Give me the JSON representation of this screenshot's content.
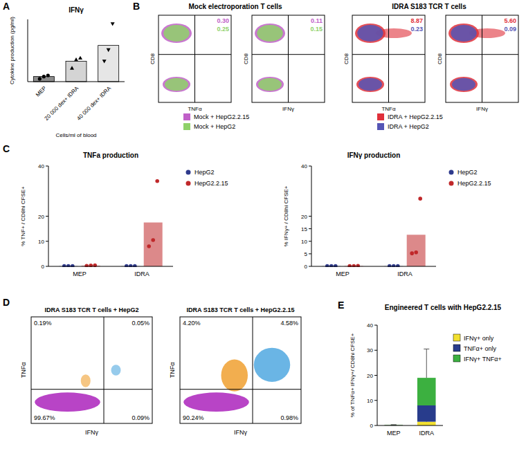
{
  "chart_data": [
    {
      "panel": "A",
      "type": "bar",
      "title": "IFNγ",
      "y_label": "Cytokine production (pg/ml)",
      "x_label": "Cells/ml of blood",
      "categories": [
        "MEP",
        "20 000 dex+ IDRA",
        "40 000 dex+ IDRA"
      ],
      "values": [
        4.5,
        18,
        32
      ],
      "colors": [
        "#8c8c8c",
        "#d4d4d4",
        "#e6e6e6"
      ],
      "points": [
        [
          2.5,
          4.5,
          5.5
        ],
        [
          12,
          19.5,
          21
        ],
        [
          18,
          28,
          51
        ]
      ],
      "ylim": [
        0,
        55
      ],
      "tick_labels": "x"
    },
    {
      "panel": "B",
      "type": "flow",
      "title": "Mock electroporation T cells",
      "y_label": "CD8",
      "series": [
        {
          "name": "Mock + HepG2.2.15",
          "color": "#c060c8"
        },
        {
          "name": "Mock + HepG2",
          "color": "#8fd16a"
        }
      ],
      "plots": [
        {
          "x_label": "TNFα",
          "values": [
            0.3,
            0.25
          ],
          "value_labels": [
            "0.30",
            "0.25"
          ]
        },
        {
          "x_label": "IFNγ",
          "values": [
            0.11,
            0.15
          ],
          "value_labels": [
            "0.11",
            "0.15"
          ]
        }
      ]
    },
    {
      "type": "flow",
      "title": "IDRA S183 TCR T cells",
      "y_label": "CD8",
      "series": [
        {
          "name": "IDRA + HepG2.2.15",
          "color": "#e0303a"
        },
        {
          "name": "IDRA + HepG2",
          "color": "#5555b5"
        }
      ],
      "plots": [
        {
          "x_label": "TNFα",
          "values": [
            8.87,
            0.23
          ],
          "value_labels": [
            "8.87",
            "0.23"
          ]
        },
        {
          "x_label": "IFNγ",
          "values": [
            5.6,
            0.09
          ],
          "value_labels": [
            "5.60",
            "0.09"
          ]
        }
      ]
    },
    {
      "panel": "C",
      "type": "bar",
      "title": "TNFa production",
      "y_label": "% TNF+ / CD8hi CFSE+",
      "categories": [
        "MEP",
        "IDRA"
      ],
      "series": [
        {
          "name": "HepG2",
          "color": "#2e3a8c",
          "values": [
            0.1,
            0.1
          ],
          "points": [
            [
              0.1,
              0.1,
              0.1
            ],
            [
              0.1,
              0.1,
              0.1
            ]
          ]
        },
        {
          "name": "HepG2.2.15",
          "color": "#c0282a",
          "values": [
            0.3,
            17.5
          ],
          "points": [
            [
              0.2,
              0.3,
              0.4
            ],
            [
              8,
              10.5,
              34
            ]
          ]
        }
      ],
      "ylim": [
        0,
        40
      ],
      "yticks": [
        0,
        10,
        20,
        40
      ],
      "legend": "right"
    },
    {
      "type": "bar",
      "title": "IFNγ production",
      "y_label": "% IFNγ+ / CD8hi CFSE+",
      "categories": [
        "MEP",
        "IDRA"
      ],
      "series": [
        {
          "name": "HepG2",
          "color": "#2e3a8c",
          "values": [
            0.1,
            0.1
          ],
          "points": [
            [
              0.1,
              0.1,
              0.1
            ],
            [
              0.1,
              0.1,
              0.1
            ]
          ]
        },
        {
          "name": "HepG2.2.15",
          "color": "#c0282a",
          "values": [
            0.15,
            12.6
          ],
          "points": [
            [
              0.1,
              0.15,
              0.2
            ],
            [
              5.2,
              5.6,
              27
            ]
          ]
        }
      ],
      "ylim": [
        0,
        40
      ],
      "yticks": [
        0,
        5,
        10,
        15,
        20,
        40
      ],
      "legend": "right"
    },
    {
      "panel": "D",
      "type": "flow",
      "x_label": "IFNγ",
      "y_label": "TNFα",
      "plots": [
        {
          "title": "IDRA S183 TCR T cells + HepG2",
          "values": [
            0.19,
            0.05,
            99.67,
            0.09
          ],
          "value_labels": [
            "0.19%",
            "0.05%",
            "99.67%",
            "0.09%"
          ]
        },
        {
          "title": "IDRA S183 TCR T cells + HepG2.2.15",
          "values": [
            4.2,
            4.58,
            90.24,
            0.98
          ],
          "value_labels": [
            "4.20%",
            "4.58%",
            "90.24%",
            "0.98%"
          ]
        }
      ]
    },
    {
      "panel": "E",
      "type": "bar",
      "title": "Engineered T cells with HepG2.2.15",
      "y_label": "% of TNFα+ IFNγ+/ CD8hi CFSE+",
      "categories": [
        "MEP",
        "IDRA"
      ],
      "series": [
        {
          "name": "IFNγ+ only",
          "color": "#f2e030",
          "values": [
            0.1,
            1.5
          ],
          "errors": [
            0,
            0.5
          ]
        },
        {
          "name": "TNFα+ only",
          "color": "#283c8c",
          "values": [
            0.1,
            6.5
          ],
          "errors": [
            0,
            2
          ]
        },
        {
          "name": "IFNγ+ TNFα+",
          "color": "#3cb040",
          "values": [
            0.1,
            11
          ],
          "errors": [
            0,
            11.5
          ]
        }
      ],
      "ylim": [
        0,
        40
      ],
      "yticks": [
        0,
        10,
        20,
        30,
        40
      ],
      "stacked": true,
      "legend": "right"
    }
  ]
}
